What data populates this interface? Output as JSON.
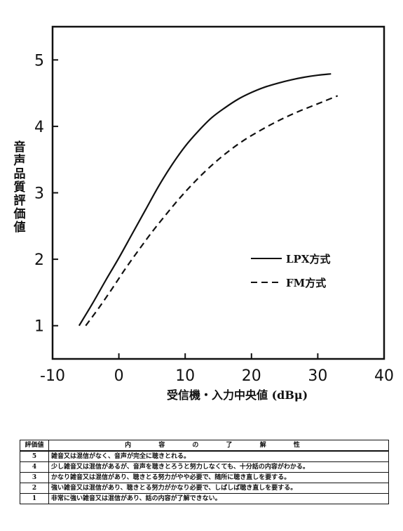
{
  "chart_data": {
    "type": "line",
    "ylabel": "音声品質評価値",
    "xlabel": "受信機・入力中央値 (dBμ)",
    "xlim": [
      -10,
      40
    ],
    "ylim": [
      0.5,
      5.5
    ],
    "xticks": [
      -10,
      0,
      10,
      20,
      30,
      40
    ],
    "yticks": [
      1,
      2,
      3,
      4,
      5
    ],
    "legend_position": "center-right",
    "series": [
      {
        "name": "LPX方式",
        "style": "solid",
        "x": [
          -6,
          -4,
          -2,
          0,
          2,
          4,
          6,
          8,
          10,
          12,
          14,
          16,
          18,
          20,
          22,
          24,
          26,
          28,
          30,
          32
        ],
        "y": [
          1.0,
          1.33,
          1.68,
          2.02,
          2.38,
          2.74,
          3.1,
          3.42,
          3.7,
          3.93,
          4.13,
          4.28,
          4.41,
          4.51,
          4.59,
          4.65,
          4.7,
          4.74,
          4.77,
          4.79
        ]
      },
      {
        "name": "FM方式",
        "style": "dashed",
        "x": [
          -5,
          -3,
          -1,
          1,
          3,
          5,
          7,
          9,
          11,
          13,
          15,
          17,
          19,
          21,
          23,
          25,
          27,
          29,
          31,
          33
        ],
        "y": [
          1.0,
          1.27,
          1.56,
          1.86,
          2.14,
          2.41,
          2.66,
          2.9,
          3.12,
          3.32,
          3.5,
          3.66,
          3.8,
          3.92,
          4.03,
          4.13,
          4.22,
          4.3,
          4.38,
          4.46
        ]
      }
    ]
  },
  "table": {
    "headers": [
      "評価値",
      "内 容 の 了 解 性"
    ],
    "rows": [
      {
        "score": "5",
        "text": "雑音又は混信がなく、音声が完全に聴きとれる。"
      },
      {
        "score": "4",
        "text": "少し雑音又は混信があるが、音声を聴きとろうと努力しなくても、十分話の内容がわかる。"
      },
      {
        "score": "3",
        "text": "かなり雑音又は混信があり、聴きとる努力がやや必要で、随所に聴き直しを要する。"
      },
      {
        "score": "2",
        "text": "強い雑音又は混信があり、聴きとる努力がかなり必要で、しばしば聴き直しを要する。"
      },
      {
        "score": "1",
        "text": "非常に強い雑音又は混信があり、話の内容が了解できない。"
      }
    ]
  }
}
